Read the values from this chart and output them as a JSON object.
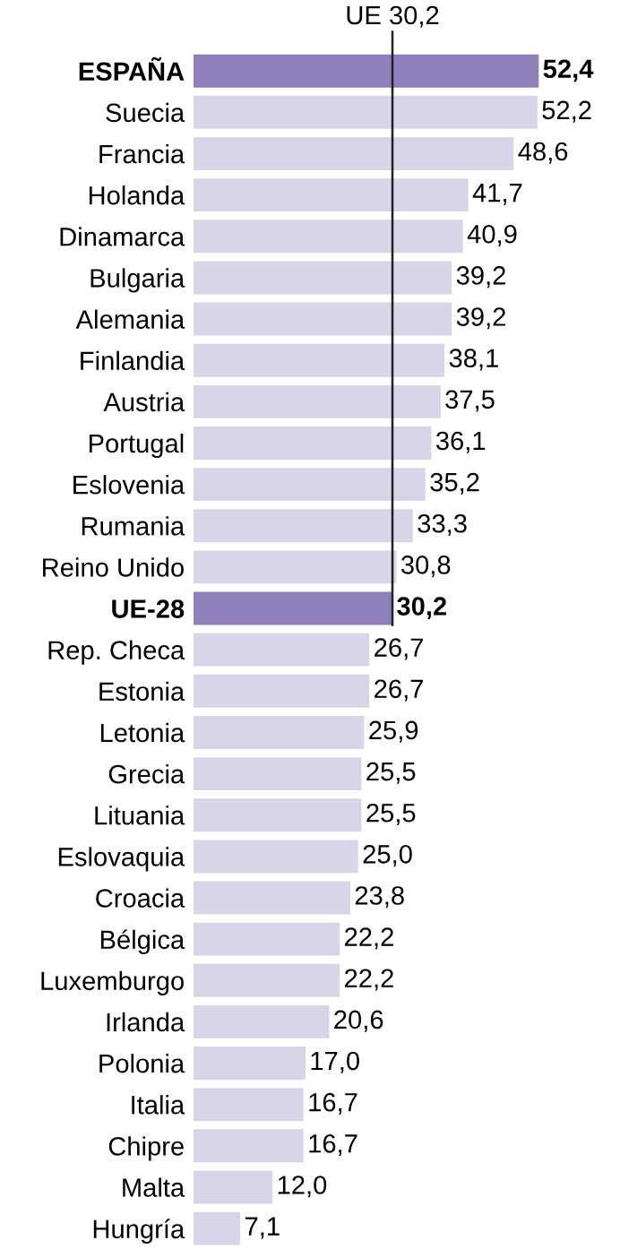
{
  "chart_data": {
    "type": "bar",
    "orientation": "horizontal",
    "categories": [
      "ESPAÑA",
      "Suecia",
      "Francia",
      "Holanda",
      "Dinamarca",
      "Bulgaria",
      "Alemania",
      "Finlandia",
      "Austria",
      "Portugal",
      "Eslovenia",
      "Rumania",
      "Reino Unido",
      "UE-28",
      "Rep. Checa",
      "Estonia",
      "Letonia",
      "Grecia",
      "Lituania",
      "Eslovaquia",
      "Croacia",
      "Bélgica",
      "Luxemburgo",
      "Irlanda",
      "Polonia",
      "Italia",
      "Chipre",
      "Malta",
      "Hungría"
    ],
    "values": [
      52.4,
      52.2,
      48.6,
      41.7,
      40.9,
      39.2,
      39.2,
      38.1,
      37.5,
      36.1,
      35.2,
      33.3,
      30.8,
      30.2,
      26.7,
      26.7,
      25.9,
      25.5,
      25.5,
      25.0,
      23.8,
      22.2,
      22.2,
      20.6,
      17.0,
      16.7,
      16.7,
      12.0,
      7.1
    ],
    "value_labels": [
      "52,4",
      "52,2",
      "48,6",
      "41,7",
      "40,9",
      "39,2",
      "39,2",
      "38,1",
      "37,5",
      "36,1",
      "35,2",
      "33,3",
      "30,8",
      "30,2",
      "26,7",
      "26,7",
      "25,9",
      "25,5",
      "25,5",
      "25,0",
      "23,8",
      "22,2",
      "22,2",
      "20,6",
      "17,0",
      "16,7",
      "16,7",
      "12,0",
      "7,1"
    ],
    "colors": [
      "#8f7fba",
      "#d9d4e8",
      "#d9d4e8",
      "#d9d4e8",
      "#d9d4e8",
      "#d9d4e8",
      "#d9d4e8",
      "#d9d4e8",
      "#d9d4e8",
      "#d9d4e8",
      "#d9d4e8",
      "#d9d4e8",
      "#d9d4e8",
      "#8f7fba",
      "#d9d4e8",
      "#d9d4e8",
      "#d9d4e8",
      "#d9d4e8",
      "#d9d4e8",
      "#d9d4e8",
      "#d9d4e8",
      "#d9d4e8",
      "#d9d4e8",
      "#d9d4e8",
      "#d9d4e8",
      "#d9d4e8",
      "#d9d4e8",
      "#d9d4e8",
      "#d9d4e8"
    ],
    "tick_labels": "y",
    "ref_lines": [
      {
        "axis": "x",
        "value": 30.2,
        "label": "UE 30,2",
        "color": "#222222"
      }
    ]
  }
}
